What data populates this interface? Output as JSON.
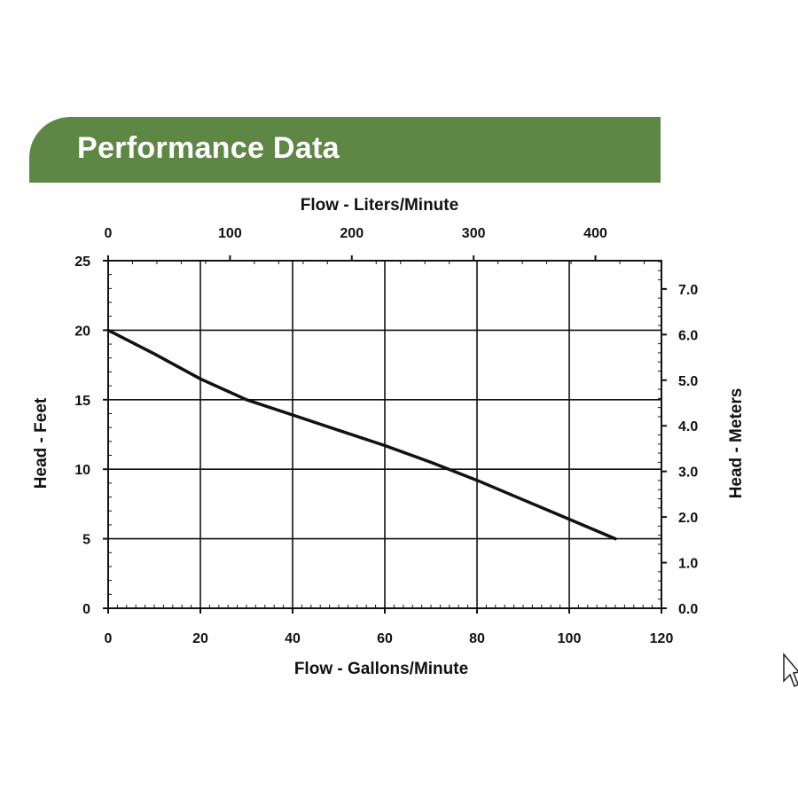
{
  "header": {
    "title": "Performance Data"
  },
  "colors": {
    "banner": "#5e8745",
    "curve": "#111111",
    "grid": "#111111"
  },
  "chart_data": {
    "type": "line",
    "title": "",
    "xlabel": "Flow - Gallons/Minute",
    "ylabel": "Head - Feet",
    "x2label": "Flow - Liters/Minute",
    "y2label": "Head - Meters",
    "xlim": [
      0,
      120
    ],
    "ylim": [
      0,
      25
    ],
    "x2lim": [
      0,
      454.2
    ],
    "y2lim": [
      0,
      7.62
    ],
    "x_ticks": [
      "0",
      "20",
      "40",
      "60",
      "80",
      "100",
      "120"
    ],
    "y_ticks": [
      "0",
      "5",
      "10",
      "15",
      "20",
      "25"
    ],
    "x2_ticks": [
      "0",
      "100",
      "200",
      "300",
      "400"
    ],
    "y2_ticks": [
      "0.0",
      "1.0",
      "2.0",
      "3.0",
      "4.0",
      "5.0",
      "6.0",
      "7.0"
    ],
    "grid": true,
    "series": [
      {
        "x": [
          0,
          10,
          20,
          30,
          40,
          50,
          60,
          70,
          80,
          90,
          100,
          110
        ],
        "y": [
          20,
          18.3,
          16.5,
          15.0,
          13.9,
          12.8,
          11.7,
          10.5,
          9.2,
          7.8,
          6.4,
          5.0
        ]
      }
    ]
  }
}
